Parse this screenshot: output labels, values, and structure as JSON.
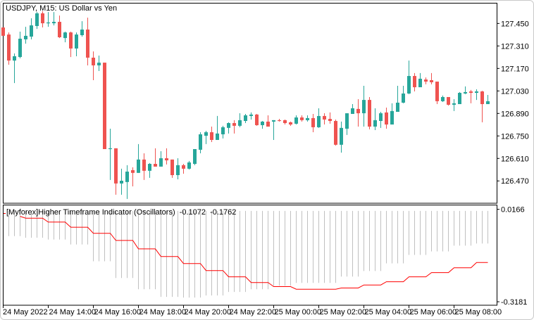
{
  "window": {
    "title": "USDJPY, M15:  US Dollar vs Yen"
  },
  "indicator": {
    "name": "[Myforex]Higher Timeframe Indicator (Oscillators)",
    "values": [
      "-0.1072",
      "-0.1762"
    ]
  },
  "colors": {
    "bull": "#26a69a",
    "bear": "#ef5350",
    "indicator_line": "#ff0000",
    "histogram": "#c0c0c0",
    "frame": "#000000"
  },
  "chart_data": [
    {
      "type": "candlestick",
      "symbol": "USDJPY",
      "timeframe": "M15",
      "ylim": [
        126.331,
        127.574
      ],
      "yticks": [
        "127.450",
        "127.310",
        "127.170",
        "127.030",
        "126.890",
        "126.750",
        "126.610",
        "126.470"
      ],
      "xticks": [
        "24 May 2022",
        "24 May 14:00",
        "24 May 16:00",
        "24 May 18:00",
        "24 May 20:00",
        "24 May 22:00",
        "25 May 00:00",
        "25 May 02:00",
        "25 May 04:00",
        "25 May 06:00",
        "25 May 08:00"
      ],
      "ohlc": [
        [
          127.425,
          127.425,
          127.373,
          127.373
        ],
        [
          127.381,
          127.394,
          127.193,
          127.219
        ],
        [
          127.219,
          127.263,
          127.079,
          127.246
        ],
        [
          127.241,
          127.399,
          127.233,
          127.355
        ],
        [
          127.351,
          127.429,
          127.324,
          127.373
        ],
        [
          127.368,
          127.482,
          127.351,
          127.438
        ],
        [
          127.434,
          127.521,
          127.416,
          127.513
        ],
        [
          127.513,
          127.526,
          127.425,
          127.451
        ],
        [
          127.451,
          127.521,
          127.429,
          127.456
        ],
        [
          127.451,
          127.521,
          127.438,
          127.46
        ],
        [
          127.46,
          127.499,
          127.359,
          127.364
        ],
        [
          127.359,
          127.399,
          127.333,
          127.394
        ],
        [
          127.394,
          127.399,
          127.241,
          127.294
        ],
        [
          127.294,
          127.394,
          127.246,
          127.381
        ],
        [
          127.377,
          127.464,
          127.368,
          127.412
        ],
        [
          127.412,
          127.486,
          127.189,
          127.237
        ],
        [
          127.237,
          127.276,
          127.097,
          127.189
        ],
        [
          127.189,
          127.25,
          127.154,
          127.206
        ],
        [
          127.206,
          127.206,
          126.668,
          126.668
        ],
        [
          126.668,
          126.795,
          126.476,
          126.673
        ],
        [
          126.673,
          126.673,
          126.384,
          126.454
        ],
        [
          126.454,
          126.546,
          126.384,
          126.471
        ],
        [
          126.463,
          126.568,
          126.358,
          126.528
        ],
        [
          126.537,
          126.555,
          126.436,
          126.52
        ],
        [
          126.52,
          126.699,
          126.52,
          126.603
        ],
        [
          126.603,
          126.642,
          126.476,
          126.533
        ],
        [
          126.533,
          126.581,
          126.489,
          126.576
        ],
        [
          126.576,
          126.673,
          126.559,
          126.559
        ],
        [
          126.559,
          126.655,
          126.559,
          126.611
        ],
        [
          126.611,
          126.673,
          126.572,
          126.598
        ],
        [
          126.603,
          126.603,
          126.489,
          126.506
        ],
        [
          126.506,
          126.611,
          126.48,
          126.568
        ],
        [
          126.568,
          126.576,
          126.515,
          126.546
        ],
        [
          126.546,
          126.594,
          126.541,
          126.585
        ],
        [
          126.576,
          126.668,
          126.568,
          126.668
        ],
        [
          126.664,
          126.773,
          126.642,
          126.76
        ],
        [
          126.751,
          126.782,
          126.699,
          126.773
        ],
        [
          126.773,
          126.808,
          126.712,
          126.725
        ],
        [
          126.725,
          126.874,
          126.725,
          126.765
        ],
        [
          126.76,
          126.813,
          126.734,
          126.804
        ],
        [
          126.8,
          126.835,
          126.765,
          126.83
        ],
        [
          126.83,
          126.848,
          126.765,
          126.813
        ],
        [
          126.813,
          126.891,
          126.804,
          126.848
        ],
        [
          126.843,
          126.887,
          126.83,
          126.878
        ],
        [
          126.874,
          126.896,
          126.852,
          126.883
        ],
        [
          126.883,
          126.887,
          126.813,
          126.817
        ],
        [
          126.817,
          126.843,
          126.795,
          126.839
        ],
        [
          126.839,
          126.878,
          126.808,
          126.808
        ],
        [
          126.839,
          126.848,
          126.725,
          126.848
        ],
        [
          126.848,
          126.856,
          126.839,
          126.843
        ],
        [
          126.848,
          126.852,
          126.821,
          126.83
        ],
        [
          126.835,
          126.839,
          126.813,
          126.821
        ],
        [
          126.826,
          126.878,
          126.821,
          126.865
        ],
        [
          126.865,
          126.878,
          126.839,
          126.848
        ],
        [
          126.848,
          126.878,
          126.839,
          126.861
        ],
        [
          126.861,
          126.887,
          126.773,
          126.804
        ],
        [
          126.804,
          126.922,
          126.8,
          126.874
        ],
        [
          126.874,
          126.891,
          126.821,
          126.852
        ],
        [
          126.856,
          126.896,
          126.826,
          126.843
        ],
        [
          126.843,
          126.852,
          126.69,
          126.695
        ],
        [
          126.695,
          126.839,
          126.646,
          126.8
        ],
        [
          126.795,
          126.891,
          126.756,
          126.891
        ],
        [
          126.887,
          126.948,
          126.887,
          126.922
        ],
        [
          126.918,
          126.979,
          126.808,
          126.891
        ],
        [
          126.891,
          127.062,
          126.808,
          126.974
        ],
        [
          126.974,
          126.992,
          126.791,
          126.808
        ],
        [
          126.808,
          126.922,
          126.786,
          126.848
        ],
        [
          126.843,
          126.9,
          126.8,
          126.891
        ],
        [
          126.896,
          126.926,
          126.795,
          126.821
        ],
        [
          126.821,
          126.953,
          126.821,
          126.905
        ],
        [
          126.9,
          127.062,
          126.9,
          126.957
        ],
        [
          126.957,
          127.062,
          126.953,
          127.014
        ],
        [
          127.014,
          127.219,
          127.01,
          127.123
        ],
        [
          127.123,
          127.141,
          127.027,
          127.053
        ],
        [
          127.053,
          127.141,
          127.053,
          127.106
        ],
        [
          127.101,
          127.114,
          127.071,
          127.088
        ],
        [
          127.097,
          127.141,
          127.071,
          127.084
        ],
        [
          127.088,
          127.088,
          126.948,
          126.966
        ],
        [
          126.966,
          127.001,
          126.961,
          126.992
        ],
        [
          126.992,
          126.992,
          126.939,
          126.944
        ],
        [
          126.944,
          126.979,
          126.905,
          126.953
        ],
        [
          126.948,
          127.023,
          126.948,
          127.018
        ],
        [
          127.014,
          127.058,
          127.01,
          127.023
        ],
        [
          127.027,
          127.036,
          126.953,
          127.018
        ],
        [
          127.018,
          127.04,
          126.974,
          127.027
        ],
        [
          127.027,
          127.031,
          126.835,
          126.948
        ],
        [
          126.948,
          127.005,
          126.948,
          126.966
        ]
      ]
    },
    {
      "type": "bar+line",
      "ylim": [
        -0.3307,
        0.031
      ],
      "yticks": [
        "0.0166",
        "-0.3181"
      ],
      "histogram_top": 0.011,
      "histogram": [
        null,
        -0.0803,
        -0.0803,
        -0.0803,
        -0.0861,
        -0.0861,
        -0.0861,
        -0.0861,
        -0.0929,
        -0.0929,
        -0.0929,
        -0.0929,
        -0.1106,
        -0.1106,
        -0.1106,
        -0.1106,
        -0.1714,
        -0.1714,
        -0.1714,
        -0.1714,
        -0.2321,
        -0.2321,
        -0.2321,
        -0.2321,
        -0.2726,
        -0.2726,
        -0.2726,
        -0.2726,
        -0.3004,
        -0.3004,
        -0.3004,
        -0.3004,
        -0.303,
        -0.303,
        -0.303,
        -0.303,
        -0.2954,
        -0.2954,
        -0.2954,
        -0.2954,
        -0.2827,
        -0.2827,
        -0.2827,
        -0.2827,
        -0.2726,
        -0.2726,
        -0.2726,
        -0.2726,
        -0.2599,
        -0.2599,
        -0.2599,
        -0.2599,
        -0.2498,
        -0.2498,
        -0.2498,
        -0.2498,
        -0.2498,
        -0.2498,
        -0.2498,
        -0.2498,
        -0.227,
        -0.227,
        -0.227,
        -0.227,
        -0.2068,
        -0.2068,
        -0.2068,
        -0.2068,
        -0.179,
        -0.179,
        -0.179,
        -0.179,
        -0.1486,
        -0.1486,
        -0.1486,
        -0.1486,
        -0.1359,
        -0.1359,
        -0.1359,
        -0.1359,
        -0.1149,
        -0.1149,
        -0.1149,
        -0.1149,
        -0.1072,
        -0.1072,
        -0.1072
      ],
      "line": [
        null,
        null,
        null,
        -0.0087,
        -0.0153,
        -0.0153,
        -0.0153,
        -0.0153,
        -0.0297,
        -0.0297,
        -0.0297,
        -0.0297,
        -0.0482,
        -0.0482,
        -0.0482,
        -0.0482,
        -0.0702,
        -0.0702,
        -0.0702,
        -0.0702,
        -0.0962,
        -0.0962,
        -0.0962,
        -0.0962,
        -0.1266,
        -0.1266,
        -0.1266,
        -0.1266,
        -0.1544,
        -0.1544,
        -0.1544,
        -0.1544,
        -0.1797,
        -0.1797,
        -0.1797,
        -0.1797,
        -0.205,
        -0.205,
        -0.205,
        -0.205,
        -0.2278,
        -0.2278,
        -0.2278,
        -0.2278,
        -0.2485,
        -0.2485,
        -0.2485,
        -0.2485,
        -0.2632,
        -0.2632,
        -0.2632,
        -0.2632,
        -0.2726,
        -0.2726,
        -0.2726,
        -0.2726,
        -0.2726,
        -0.2726,
        -0.2726,
        -0.2726,
        -0.2683,
        -0.2683,
        -0.2683,
        -0.2683,
        -0.2574,
        -0.2574,
        -0.2574,
        -0.2574,
        -0.2455,
        -0.2455,
        -0.2455,
        -0.2455,
        -0.2278,
        -0.2278,
        -0.2278,
        -0.2278,
        -0.2126,
        -0.2126,
        -0.2126,
        -0.2126,
        -0.1949,
        -0.1949,
        -0.1949,
        -0.1949,
        -0.1762,
        -0.1762,
        -0.1762
      ]
    }
  ]
}
